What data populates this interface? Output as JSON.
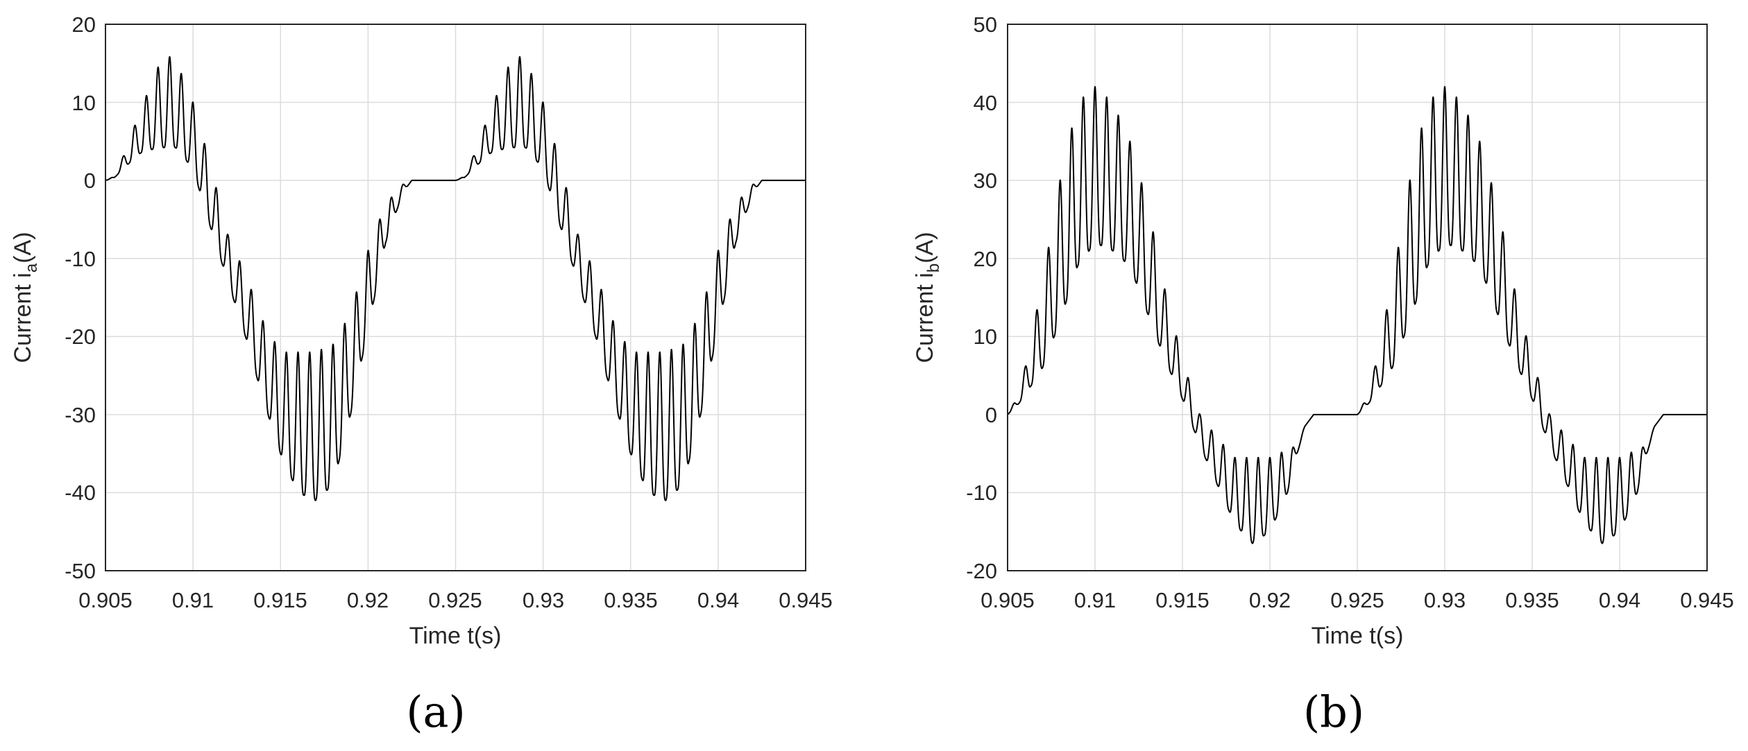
{
  "chart_data": [
    {
      "type": "line",
      "panel_label": "(a)",
      "xlabel": "Time t(s)",
      "ylabel": {
        "main": "Current i",
        "subscript": "a",
        "unit": "(A)"
      },
      "xlim": [
        0.905,
        0.945
      ],
      "ylim": [
        -50,
        20
      ],
      "xticks": [
        "0.905",
        "0.91",
        "0.915",
        "0.92",
        "0.925",
        "0.93",
        "0.935",
        "0.94",
        "0.945"
      ],
      "yticks": [
        "-50",
        "-40",
        "-30",
        "-20",
        "-10",
        "0",
        "10",
        "20"
      ],
      "grid": true,
      "series": [
        {
          "color": "#000000",
          "period_s": 0.02,
          "ripple_count_per_period": 30,
          "x": [
            0.905,
            0.9055,
            0.906,
            0.907,
            0.908,
            0.9085,
            0.909,
            0.91,
            0.911,
            0.912,
            0.913,
            0.914,
            0.915,
            0.916,
            0.917,
            0.918,
            0.919,
            0.92,
            0.921,
            0.922,
            0.9225,
            0.9255
          ],
          "upper": [
            0,
            0.5,
            3,
            9,
            14.5,
            16,
            15.5,
            10,
            2,
            -7,
            -12,
            -18,
            -22,
            -22,
            -22,
            -21,
            -17,
            -9,
            -3,
            -0.5,
            0,
            0
          ],
          "lower": [
            0,
            0.3,
            1.5,
            3.5,
            4.2,
            4.2,
            4.2,
            1.5,
            -6,
            -13,
            -20,
            -28,
            -35,
            -40,
            -41,
            -39,
            -30,
            -19,
            -8,
            -1.5,
            0,
            0
          ]
        }
      ]
    },
    {
      "type": "line",
      "panel_label": "(b)",
      "xlabel": "Time t(s)",
      "ylabel": {
        "main": "Current i",
        "subscript": "b",
        "unit": "(A)"
      },
      "xlim": [
        0.905,
        0.945
      ],
      "ylim": [
        -20,
        50
      ],
      "xticks": [
        "0.905",
        "0.91",
        "0.915",
        "0.92",
        "0.925",
        "0.93",
        "0.935",
        "0.94",
        "0.945"
      ],
      "yticks": [
        "-20",
        "-10",
        "0",
        "10",
        "20",
        "30",
        "40",
        "50"
      ],
      "grid": true,
      "series": [
        {
          "color": "#000000",
          "period_s": 0.02,
          "ripple_count_per_period": 30,
          "x": [
            0.905,
            0.9055,
            0.906,
            0.907,
            0.908,
            0.909,
            0.91,
            0.911,
            0.912,
            0.913,
            0.914,
            0.915,
            0.916,
            0.917,
            0.918,
            0.919,
            0.92,
            0.921,
            0.9215,
            0.922,
            0.9225,
            0.9255
          ],
          "upper": [
            0,
            2,
            6,
            17,
            30,
            40,
            42,
            40,
            35,
            27,
            16,
            7,
            0,
            -3,
            -5.5,
            -5.5,
            -5.5,
            -4.5,
            -4,
            -1.5,
            0,
            0
          ],
          "lower": [
            0,
            1,
            2.5,
            6,
            12,
            19,
            22,
            21,
            19,
            13,
            7,
            2,
            -4,
            -9,
            -14,
            -16.5,
            -15,
            -10,
            -5.5,
            -1.5,
            0,
            0
          ]
        }
      ]
    }
  ]
}
